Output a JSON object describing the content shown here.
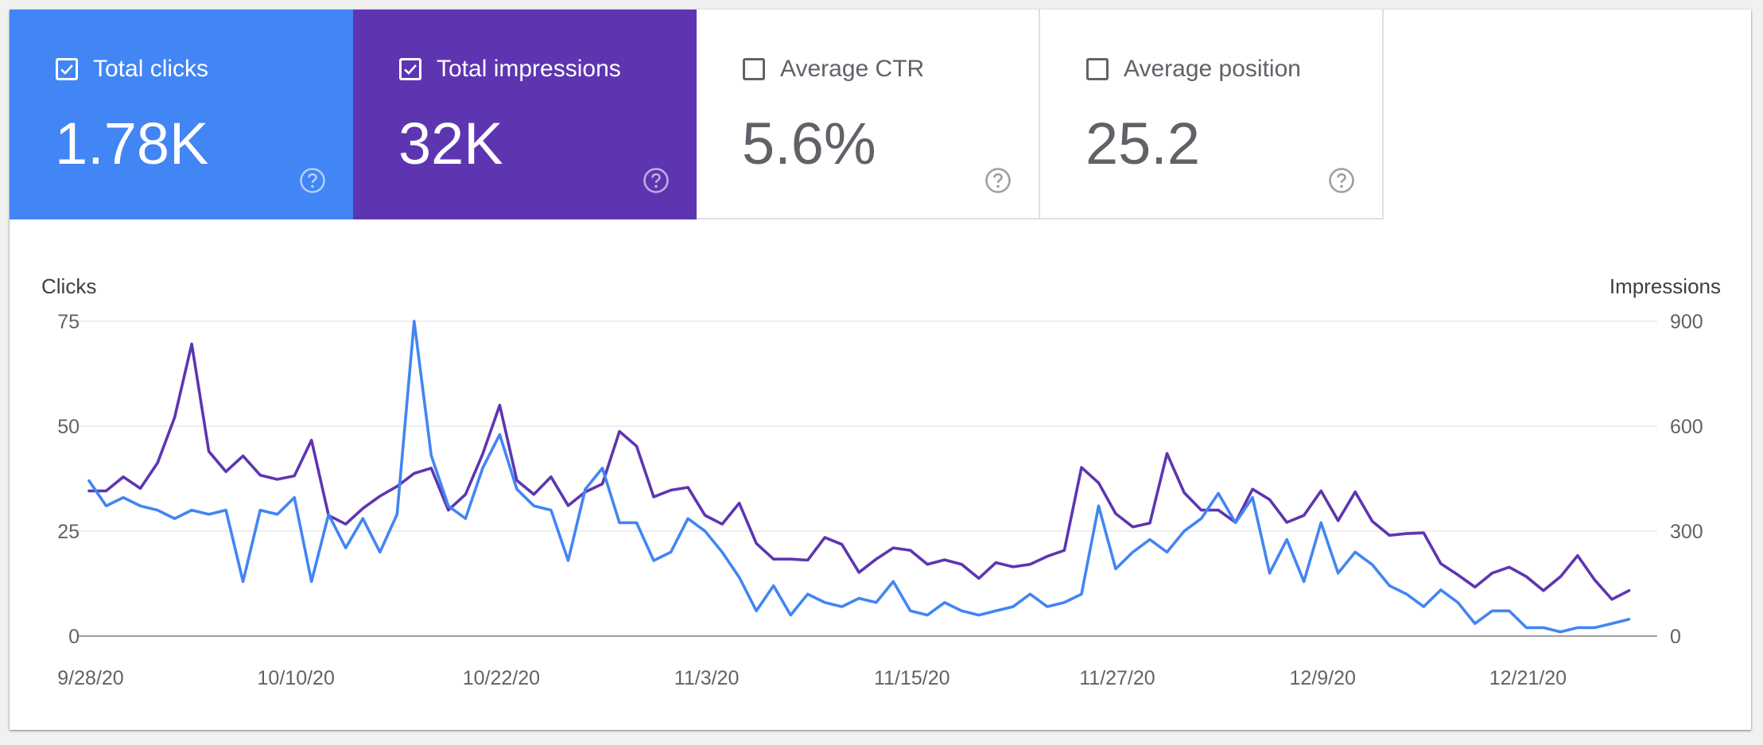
{
  "metrics": [
    {
      "label": "Total clicks",
      "value": "1.78K",
      "selected": true,
      "bg": "#4285f4",
      "fg": "#ffffff",
      "check": "checkbox-checked-icon",
      "help": "help-circle-icon"
    },
    {
      "label": "Total impressions",
      "value": "32K",
      "selected": true,
      "bg": "#5e35b1",
      "fg": "#ffffff",
      "check": "checkbox-checked-icon",
      "help": "help-circle-icon"
    },
    {
      "label": "Average CTR",
      "value": "5.6%",
      "selected": false,
      "bg": "#ffffff",
      "fg": "#5f6368",
      "check": "checkbox-empty-icon",
      "help": "help-circle-icon"
    },
    {
      "label": "Average position",
      "value": "25.2",
      "selected": false,
      "bg": "#ffffff",
      "fg": "#5f6368",
      "check": "checkbox-empty-icon",
      "help": "help-circle-icon"
    }
  ],
  "chart_data": {
    "type": "line",
    "left_axis_title": "Clicks",
    "right_axis_title": "Impressions",
    "x_tick_labels": [
      "9/28/20",
      "10/10/20",
      "10/22/20",
      "11/3/20",
      "11/15/20",
      "11/27/20",
      "12/9/20",
      "12/21/20"
    ],
    "left_ylim": [
      0,
      75
    ],
    "left_ticks": [
      0,
      25,
      50,
      75
    ],
    "right_ylim": [
      0,
      900
    ],
    "right_ticks": [
      0,
      300,
      600,
      900
    ],
    "grid": true,
    "days": 92,
    "series": [
      {
        "name": "Total clicks",
        "axis": "left",
        "color": "#4285f4",
        "values": [
          37,
          31,
          33,
          31,
          30,
          28,
          30,
          29,
          30,
          13,
          30,
          29,
          33,
          13,
          29,
          21,
          28,
          20,
          29,
          75,
          43,
          31,
          28,
          40,
          48,
          35,
          31,
          30,
          18,
          35,
          40,
          27,
          27,
          18,
          20,
          28,
          25,
          20,
          14,
          6,
          12,
          5,
          10,
          8,
          7,
          9,
          8,
          13,
          6,
          5,
          8,
          6,
          5,
          6,
          7,
          10,
          7,
          8,
          10,
          31,
          16,
          20,
          23,
          20,
          25,
          28,
          34,
          27,
          33,
          15,
          23,
          13,
          27,
          15,
          20,
          17,
          12,
          10,
          7,
          11,
          8,
          3,
          6,
          6,
          2,
          2,
          1,
          2,
          2,
          3,
          4
        ],
        "start_day": 0
      },
      {
        "name": "Total impressions",
        "axis": "right",
        "color": "#5e35b1",
        "values": [
          415,
          415,
          455,
          422,
          495,
          625,
          835,
          528,
          470,
          515,
          460,
          448,
          458,
          560,
          345,
          320,
          365,
          400,
          428,
          465,
          480,
          360,
          405,
          520,
          660,
          445,
          405,
          455,
          373,
          412,
          435,
          585,
          543,
          398,
          417,
          425,
          345,
          320,
          380,
          265,
          220,
          220,
          217,
          282,
          262,
          182,
          220,
          252,
          245,
          205,
          218,
          205,
          165,
          210,
          198,
          205,
          228,
          245,
          482,
          438,
          350,
          312,
          323,
          522,
          410,
          360,
          360,
          325,
          420,
          390,
          325,
          345,
          415,
          330,
          412,
          328,
          288,
          293,
          295,
          207,
          175,
          140,
          180,
          197,
          170,
          130,
          170,
          230,
          160,
          105,
          130
        ],
        "start_day": 0
      }
    ]
  }
}
